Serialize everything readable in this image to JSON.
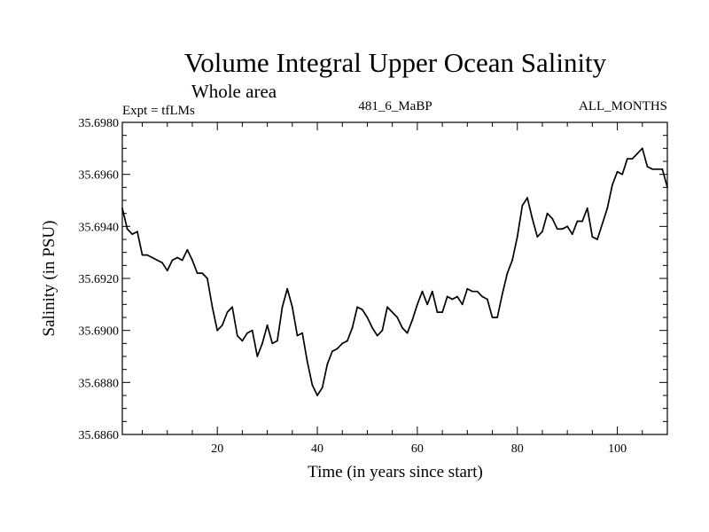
{
  "chart_data": {
    "type": "line",
    "title": "Volume Integral Upper Ocean Salinity",
    "subtitle": "Whole area",
    "left_note": "Expt = tfLMs",
    "center_note": "481_6_MaBP",
    "right_note": "ALL_MONTHS",
    "xlabel": "Time (in years since start)",
    "ylabel": "Salinity (in PSU)",
    "xlim": [
      1,
      110
    ],
    "ylim": [
      35.686,
      35.698
    ],
    "x_ticks": [
      20,
      40,
      60,
      80,
      100
    ],
    "x_tick_labels": [
      "20",
      "40",
      "60",
      "80",
      "100"
    ],
    "y_ticks": [
      35.686,
      35.688,
      35.69,
      35.692,
      35.694,
      35.696,
      35.698
    ],
    "y_tick_labels": [
      "35.6860",
      "35.6880",
      "35.6900",
      "35.6920",
      "35.6940",
      "35.6960",
      "35.6980"
    ],
    "grid": false,
    "series": [
      {
        "name": "Salinity",
        "color": "#000000",
        "x": [
          1,
          2,
          3,
          4,
          5,
          6,
          7,
          8,
          9,
          10,
          11,
          12,
          13,
          14,
          15,
          16,
          17,
          18,
          19,
          20,
          21,
          22,
          23,
          24,
          25,
          26,
          27,
          28,
          29,
          30,
          31,
          32,
          33,
          34,
          35,
          36,
          37,
          38,
          39,
          40,
          41,
          42,
          43,
          44,
          45,
          46,
          47,
          48,
          49,
          50,
          51,
          52,
          53,
          54,
          55,
          56,
          57,
          58,
          59,
          60,
          61,
          62,
          63,
          64,
          65,
          66,
          67,
          68,
          69,
          70,
          71,
          72,
          73,
          74,
          75,
          76,
          77,
          78,
          79,
          80,
          81,
          82,
          83,
          84,
          85,
          86,
          87,
          88,
          89,
          90,
          91,
          92,
          93,
          94,
          95,
          96,
          97,
          98,
          99,
          100,
          101,
          102,
          103,
          104,
          105,
          106,
          107,
          108,
          109,
          110
        ],
        "values": [
          35.6947,
          35.6939,
          35.6937,
          35.6938,
          35.6929,
          35.6929,
          35.6928,
          35.6927,
          35.6926,
          35.6923,
          35.6927,
          35.6928,
          35.6927,
          35.6931,
          35.6927,
          35.6922,
          35.6922,
          35.692,
          35.6909,
          35.69,
          35.6902,
          35.6907,
          35.6909,
          35.6898,
          35.6896,
          35.6899,
          35.69,
          35.689,
          35.6895,
          35.6902,
          35.6895,
          35.6896,
          35.6909,
          35.6916,
          35.6909,
          35.6898,
          35.6899,
          35.6888,
          35.6879,
          35.6875,
          35.6878,
          35.6887,
          35.6892,
          35.6893,
          35.6895,
          35.6896,
          35.6901,
          35.6909,
          35.6908,
          35.6905,
          35.6901,
          35.6898,
          35.69,
          35.6909,
          35.6907,
          35.6905,
          35.6901,
          35.6899,
          35.6904,
          35.691,
          35.6915,
          35.691,
          35.6915,
          35.6907,
          35.6907,
          35.6913,
          35.6912,
          35.6913,
          35.691,
          35.6916,
          35.6915,
          35.6915,
          35.6913,
          35.6912,
          35.6905,
          35.6905,
          35.6914,
          35.6922,
          35.6927,
          35.6936,
          35.6948,
          35.6951,
          35.6943,
          35.6936,
          35.6938,
          35.6945,
          35.6943,
          35.6939,
          35.6939,
          35.694,
          35.6937,
          35.6942,
          35.6942,
          35.6947,
          35.6936,
          35.6935,
          35.6941,
          35.6947,
          35.6956,
          35.6961,
          35.696,
          35.6966,
          35.6966,
          35.6968,
          35.697,
          35.6963,
          35.6962,
          35.6962,
          35.6962,
          35.6955
        ]
      }
    ]
  }
}
